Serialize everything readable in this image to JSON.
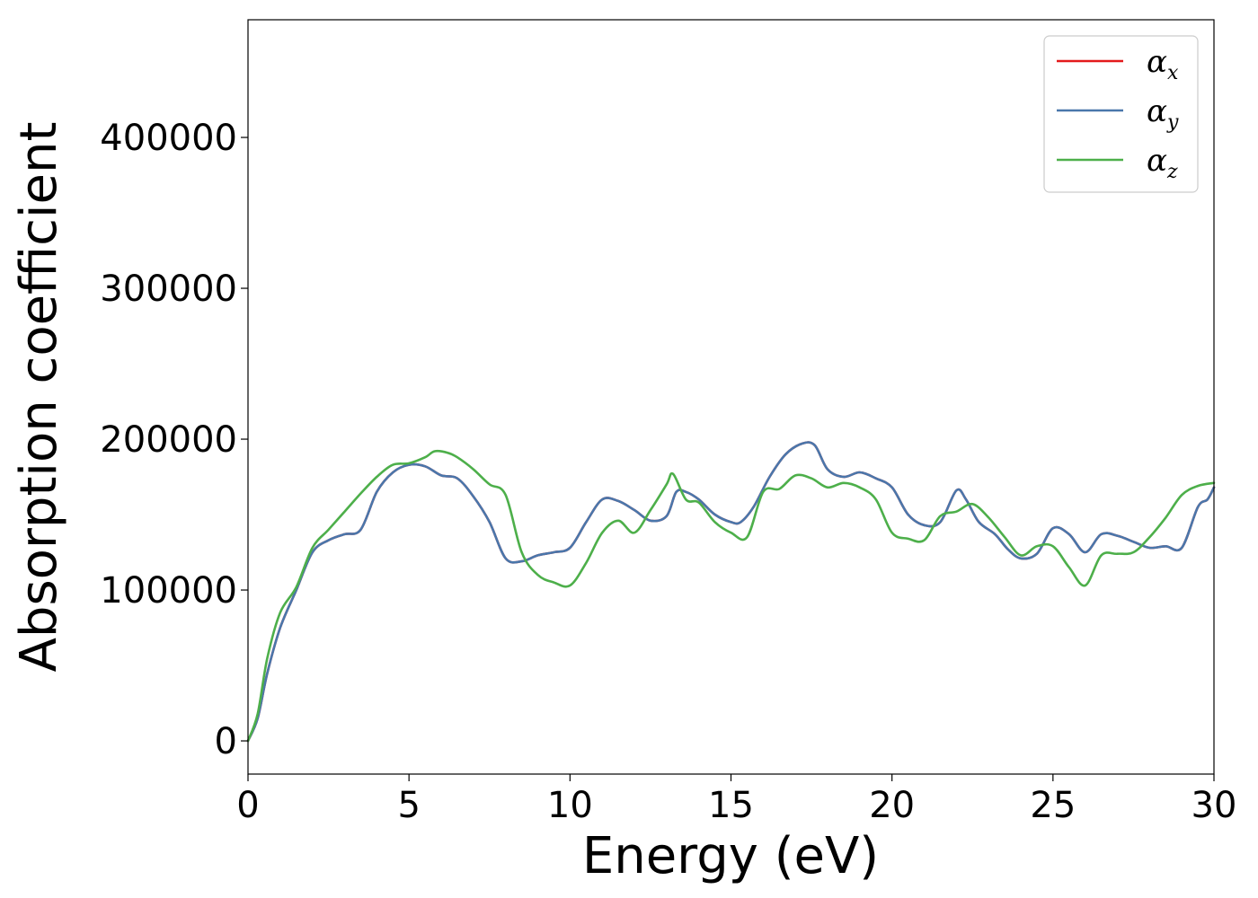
{
  "chart_data": {
    "type": "line",
    "xlabel": "Energy (eV)",
    "ylabel": "Absorption coefficient",
    "xlim": [
      0,
      30
    ],
    "ylim": [
      -22000,
      478000
    ],
    "xticks": [
      0,
      5,
      10,
      15,
      20,
      25,
      30
    ],
    "yticks": [
      0,
      100000,
      200000,
      300000,
      400000
    ],
    "xtick_labels": [
      "0",
      "5",
      "10",
      "15",
      "20",
      "25",
      "30"
    ],
    "ytick_labels": [
      "0",
      "100000",
      "200000",
      "300000",
      "400000"
    ],
    "grid": false,
    "legend_position": "top-right",
    "series": [
      {
        "name": "α_x",
        "symbol": "α",
        "subscript": "x",
        "color": "#e41a1c",
        "x": [
          0,
          0.3,
          0.6,
          1.0,
          1.5,
          2.0,
          2.5,
          3.0,
          3.5,
          4.0,
          4.5,
          5.0,
          5.5,
          6.0,
          6.5,
          7.0,
          7.5,
          8.0,
          8.5,
          9.0,
          9.5,
          10.0,
          10.5,
          11.0,
          11.5,
          12.0,
          12.5,
          13.0,
          13.3,
          13.6,
          14.0,
          14.5,
          15.0,
          15.3,
          15.7,
          16.2,
          16.7,
          17.2,
          17.6,
          18.0,
          18.5,
          19.0,
          19.5,
          20.0,
          20.5,
          21.0,
          21.5,
          22.0,
          22.3,
          22.7,
          23.2,
          23.6,
          24.0,
          24.5,
          25.0,
          25.5,
          26.0,
          26.5,
          27.0,
          27.5,
          28.0,
          28.5,
          29.0,
          29.5,
          29.8,
          30.0
        ],
        "y": [
          0,
          15000,
          45000,
          75000,
          100000,
          125000,
          133000,
          137000,
          140000,
          165000,
          178000,
          183000,
          182000,
          176000,
          174000,
          162000,
          145000,
          121000,
          119000,
          123000,
          125000,
          128000,
          145000,
          160000,
          159000,
          153000,
          146000,
          149000,
          165000,
          165000,
          160000,
          150000,
          145000,
          145000,
          155000,
          175000,
          190000,
          197000,
          196000,
          180000,
          175000,
          178000,
          174000,
          168000,
          150000,
          143000,
          145000,
          166000,
          160000,
          145000,
          137000,
          127000,
          121000,
          124000,
          141000,
          137000,
          125000,
          137000,
          136000,
          132000,
          128000,
          129000,
          128000,
          155000,
          160000,
          168000
        ]
      },
      {
        "name": "α_y",
        "symbol": "α",
        "subscript": "y",
        "color": "#4a77ab",
        "x": [
          0,
          0.3,
          0.6,
          1.0,
          1.5,
          2.0,
          2.5,
          3.0,
          3.5,
          4.0,
          4.5,
          5.0,
          5.5,
          6.0,
          6.5,
          7.0,
          7.5,
          8.0,
          8.5,
          9.0,
          9.5,
          10.0,
          10.5,
          11.0,
          11.5,
          12.0,
          12.5,
          13.0,
          13.3,
          13.6,
          14.0,
          14.5,
          15.0,
          15.3,
          15.7,
          16.2,
          16.7,
          17.2,
          17.6,
          18.0,
          18.5,
          19.0,
          19.5,
          20.0,
          20.5,
          21.0,
          21.5,
          22.0,
          22.3,
          22.7,
          23.2,
          23.6,
          24.0,
          24.5,
          25.0,
          25.5,
          26.0,
          26.5,
          27.0,
          27.5,
          28.0,
          28.5,
          29.0,
          29.5,
          29.8,
          30.0
        ],
        "y": [
          0,
          15000,
          45000,
          75000,
          100000,
          125000,
          133000,
          137000,
          140000,
          165000,
          178000,
          183000,
          182000,
          176000,
          174000,
          162000,
          145000,
          121000,
          119000,
          123000,
          125000,
          128000,
          145000,
          160000,
          159000,
          153000,
          146000,
          149000,
          165000,
          165000,
          160000,
          150000,
          145000,
          145000,
          155000,
          175000,
          190000,
          197000,
          196000,
          180000,
          175000,
          178000,
          174000,
          168000,
          150000,
          143000,
          145000,
          166000,
          160000,
          145000,
          137000,
          127000,
          121000,
          124000,
          141000,
          137000,
          125000,
          137000,
          136000,
          132000,
          128000,
          129000,
          128000,
          155000,
          160000,
          168000
        ]
      },
      {
        "name": "α_z",
        "symbol": "α",
        "subscript": "z",
        "color": "#4daf4a",
        "x": [
          0,
          0.3,
          0.6,
          1.0,
          1.5,
          2.0,
          2.5,
          3.0,
          3.5,
          4.0,
          4.5,
          5.0,
          5.5,
          5.8,
          6.2,
          6.5,
          7.0,
          7.5,
          8.0,
          8.5,
          9.0,
          9.5,
          10.0,
          10.5,
          11.0,
          11.5,
          12.0,
          12.5,
          13.0,
          13.2,
          13.6,
          14.0,
          14.5,
          15.0,
          15.5,
          16.0,
          16.5,
          17.0,
          17.5,
          18.0,
          18.5,
          19.0,
          19.5,
          20.0,
          20.5,
          21.0,
          21.5,
          22.0,
          22.5,
          23.0,
          23.5,
          24.0,
          24.5,
          25.0,
          25.5,
          26.0,
          26.5,
          27.0,
          27.5,
          28.0,
          28.5,
          29.0,
          29.5,
          30.0
        ],
        "y": [
          0,
          18000,
          55000,
          85000,
          102000,
          128000,
          140000,
          152000,
          164000,
          175000,
          183000,
          184000,
          188000,
          192000,
          191000,
          188000,
          180000,
          170000,
          163000,
          125000,
          110000,
          105000,
          103000,
          118000,
          138000,
          146000,
          138000,
          153000,
          170000,
          177000,
          160000,
          158000,
          145000,
          138000,
          135000,
          165000,
          167000,
          176000,
          174000,
          168000,
          171000,
          168000,
          160000,
          138000,
          134000,
          133000,
          149000,
          152000,
          157000,
          148000,
          135000,
          123000,
          129000,
          129000,
          115000,
          103000,
          123000,
          124000,
          125000,
          135000,
          148000,
          163000,
          169000,
          171000
        ]
      }
    ]
  }
}
